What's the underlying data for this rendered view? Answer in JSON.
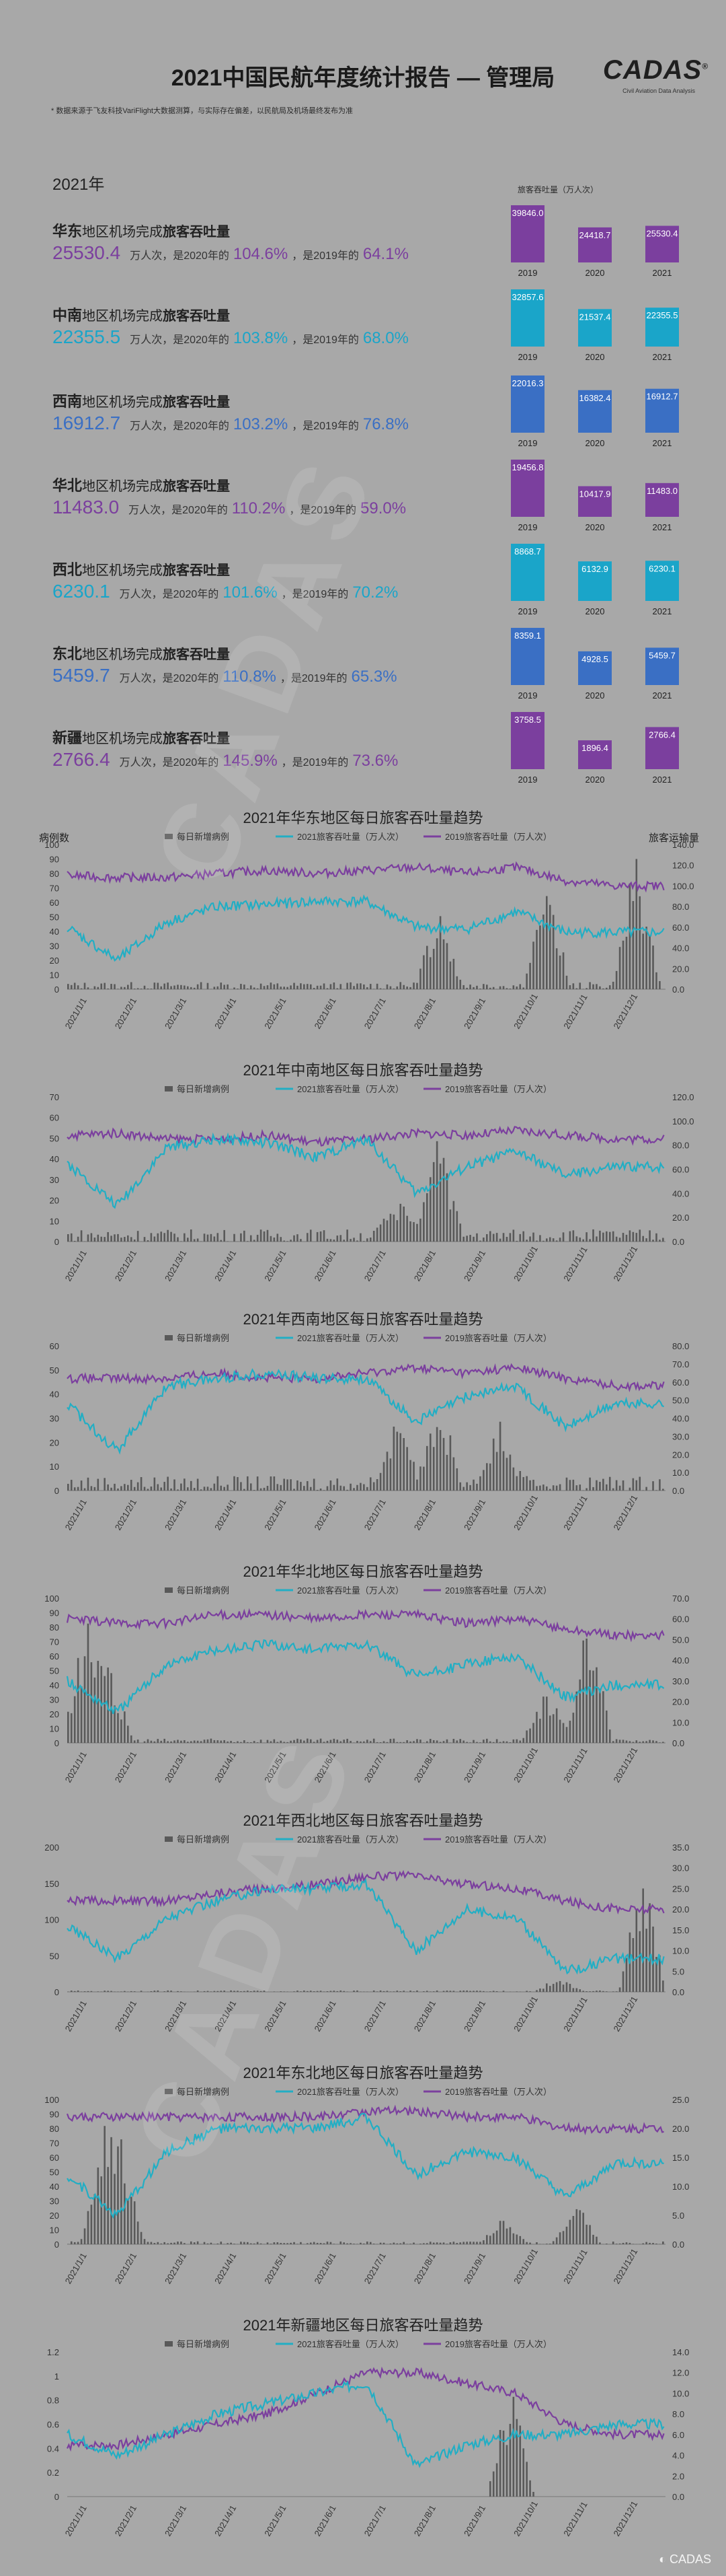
{
  "header": {
    "title": "2021中国民航年度统计报告 — 管理局",
    "logo": "CADAS",
    "logo_mark": "®",
    "logo_subtitle": "Civil Aviation Data Analysis",
    "note": "* 数据来源于飞友科技VariFlight大数据测算，与实际存在偏差，以民航局及机场最终发布为准"
  },
  "year_label": "2021年",
  "units_label": "旅客吞吐量（万人次）",
  "watermark": "CADAS",
  "colors": {
    "background": "#a8a8a8",
    "east": "#7b3f9e",
    "south": "#1aa5c9",
    "southwest": "#3a6fc4",
    "north": "#7b3f9e",
    "northwest": "#1aa5c9",
    "northeast": "#3a6fc4",
    "xinjiang": "#7b3f9e",
    "cases": "#595959",
    "y2021": "#22aec4",
    "y2019": "#7b3f9e"
  },
  "text": {
    "region_suffix_a": "地区机场完成",
    "region_suffix_b": "旅客吞吐量",
    "unit": "万人次",
    "vs2020": "，是2020年的",
    "vs2019": "，是2019年的"
  },
  "regions": [
    {
      "name": "华东",
      "total": "25530.4",
      "vs2020": "104.6%",
      "vs2019": "64.1%",
      "color": "#7b3f9e",
      "mini": {
        "years": [
          "2019",
          "2020",
          "2021"
        ],
        "values": [
          39846.0,
          24418.7,
          25530.4
        ],
        "labels": [
          "39846.0",
          "24418.7",
          "25530.4"
        ]
      }
    },
    {
      "name": "中南",
      "total": "22355.5",
      "vs2020": "103.8%",
      "vs2019": "68.0%",
      "color": "#1aa5c9",
      "mini": {
        "years": [
          "2019",
          "2020",
          "2021"
        ],
        "values": [
          32857.6,
          21537.4,
          22355.5
        ],
        "labels": [
          "32857.6",
          "21537.4",
          "22355.5"
        ]
      }
    },
    {
      "name": "西南",
      "total": "16912.7",
      "vs2020": "103.2%",
      "vs2019": "76.8%",
      "color": "#3a6fc4",
      "mini": {
        "years": [
          "2019",
          "2020",
          "2021"
        ],
        "values": [
          22016.3,
          16382.4,
          16912.7
        ],
        "labels": [
          "22016.3",
          "16382.4",
          "16912.7"
        ]
      }
    },
    {
      "name": "华北",
      "total": "11483.0",
      "vs2020": "110.2%",
      "vs2019": "59.0%",
      "color": "#7b3f9e",
      "mini": {
        "years": [
          "2019",
          "2020",
          "2021"
        ],
        "values": [
          19456.8,
          10417.9,
          11483.0
        ],
        "labels": [
          "19456.8",
          "10417.9",
          "11483.0"
        ]
      }
    },
    {
      "name": "西北",
      "total": "6230.1",
      "vs2020": "101.6%",
      "vs2019": "70.2%",
      "color": "#1aa5c9",
      "mini": {
        "years": [
          "2019",
          "2020",
          "2021"
        ],
        "values": [
          8868.7,
          6132.9,
          6230.1
        ],
        "labels": [
          "8868.7",
          "6132.9",
          "6230.1"
        ]
      }
    },
    {
      "name": "东北",
      "total": "5459.7",
      "vs2020": "110.8%",
      "vs2019": "65.3%",
      "color": "#3a6fc4",
      "mini": {
        "years": [
          "2019",
          "2020",
          "2021"
        ],
        "values": [
          8359.1,
          4928.5,
          5459.7
        ],
        "labels": [
          "8359.1",
          "4928.5",
          "5459.7"
        ]
      }
    },
    {
      "name": "新疆",
      "total": "2766.4",
      "vs2020": "145.9%",
      "vs2019": "73.6%",
      "color": "#7b3f9e",
      "mini": {
        "years": [
          "2019",
          "2020",
          "2021"
        ],
        "values": [
          3758.5,
          1896.4,
          2766.4
        ],
        "labels": [
          "3758.5",
          "1896.4",
          "2766.4"
        ]
      }
    }
  ],
  "chart_data": [
    {
      "type": "line",
      "title": "2021年华东地区每日旅客吞吐量趋势",
      "region": "华东",
      "ylabel_left": "病例数",
      "ylabel_right": "旅客运输量",
      "left_axis": {
        "min": 0,
        "max": 100,
        "ticks": [
          0,
          10,
          20,
          30,
          40,
          50,
          60,
          70,
          80,
          90,
          100
        ]
      },
      "right_axis": {
        "min": 0,
        "max": 140,
        "ticks": [
          "0.0",
          "20.0",
          "40.0",
          "60.0",
          "80.0",
          "100.0",
          "120.0",
          "140.0"
        ]
      },
      "x_ticks": [
        "2021/1/1",
        "2021/2/1",
        "2021/3/1",
        "2021/4/1",
        "2021/5/1",
        "2021/6/1",
        "2021/7/1",
        "2021/8/1",
        "2021/9/1",
        "2021/10/1",
        "2021/11/1",
        "2021/12/1"
      ],
      "legend": [
        "每日新增病例",
        "2021旅客吞吐量（万人次）",
        "2019旅客吞吐量（万人次）"
      ],
      "series_2021_monthly": [
        60,
        28,
        65,
        80,
        82,
        85,
        85,
        60,
        58,
        75,
        55,
        55
      ],
      "series_2019_monthly": [
        110,
        108,
        108,
        112,
        115,
        112,
        115,
        118,
        112,
        118,
        105,
        100
      ],
      "case_bursts": [
        [
          0.62,
          60
        ],
        [
          0.8,
          70
        ],
        [
          0.95,
          95
        ]
      ],
      "case_base": 5
    },
    {
      "type": "line",
      "title": "2021年中南地区每日旅客吞吐量趋势",
      "region": "中南",
      "left_axis": {
        "min": 0,
        "max": 70,
        "ticks": [
          0,
          10,
          20,
          30,
          40,
          50,
          60,
          70
        ]
      },
      "right_axis": {
        "min": 0,
        "max": 120,
        "ticks": [
          "0.0",
          "20.0",
          "40.0",
          "60.0",
          "80.0",
          "100.0",
          "120.0"
        ]
      },
      "x_ticks": [
        "2021/1/1",
        "2021/2/1",
        "2021/3/1",
        "2021/4/1",
        "2021/5/1",
        "2021/6/1",
        "2021/7/1",
        "2021/8/1",
        "2021/9/1",
        "2021/10/1",
        "2021/11/1",
        "2021/12/1"
      ],
      "legend": [
        "每日新增病例",
        "2021旅客吞吐量（万人次）",
        "2019旅客吞吐量（万人次）"
      ],
      "series_2021_monthly": [
        65,
        30,
        78,
        85,
        82,
        70,
        85,
        40,
        62,
        75,
        55,
        62
      ],
      "series_2019_monthly": [
        88,
        90,
        85,
        85,
        88,
        82,
        85,
        90,
        88,
        92,
        88,
        85
      ],
      "case_bursts": [
        [
          0.55,
          20
        ],
        [
          0.62,
          50
        ]
      ],
      "case_base": 6
    },
    {
      "type": "line",
      "title": "2021年西南地区每日旅客吞吐量趋势",
      "region": "西南",
      "left_axis": {
        "min": 0,
        "max": 60,
        "ticks": [
          0,
          10,
          20,
          30,
          40,
          50,
          60
        ]
      },
      "right_axis": {
        "min": 0,
        "max": 80,
        "ticks": [
          "0.0",
          "10.0",
          "20.0",
          "30.0",
          "40.0",
          "50.0",
          "60.0",
          "70.0",
          "80.0"
        ]
      },
      "x_ticks": [
        "2021/1/1",
        "2021/2/1",
        "2021/3/1",
        "2021/4/1",
        "2021/5/1",
        "2021/6/1",
        "2021/7/1",
        "2021/8/1",
        "2021/9/1",
        "2021/10/1",
        "2021/11/1",
        "2021/12/1"
      ],
      "legend": [
        "每日新增病例",
        "2021旅客吞吐量（万人次）",
        "2019旅客吞吐量（万人次）"
      ],
      "series_2021_monthly": [
        48,
        22,
        58,
        62,
        65,
        62,
        62,
        38,
        52,
        58,
        35,
        48
      ],
      "series_2019_monthly": [
        62,
        62,
        62,
        65,
        62,
        62,
        65,
        68,
        65,
        68,
        62,
        58
      ],
      "case_bursts": [
        [
          0.55,
          30
        ],
        [
          0.62,
          35
        ],
        [
          0.72,
          25
        ]
      ],
      "case_base": 6
    },
    {
      "type": "line",
      "title": "2021年华北地区每日旅客吞吐量趋势",
      "region": "华北",
      "left_axis": {
        "min": 0,
        "max": 100,
        "ticks": [
          0,
          10,
          20,
          30,
          40,
          50,
          60,
          70,
          80,
          90,
          100
        ]
      },
      "right_axis": {
        "min": 0,
        "max": 70,
        "ticks": [
          "0.0",
          "10.0",
          "20.0",
          "30.0",
          "40.0",
          "50.0",
          "60.0",
          "70.0"
        ]
      },
      "x_ticks": [
        "2021/1/1",
        "2021/2/1",
        "2021/3/1",
        "2021/4/1",
        "2021/5/1",
        "2021/6/1",
        "2021/7/1",
        "2021/8/1",
        "2021/9/1",
        "2021/10/1",
        "2021/11/1",
        "2021/12/1"
      ],
      "legend": [
        "每日新增病例",
        "2021旅客吞吐量（万人次）",
        "2019旅客吞吐量（万人次）"
      ],
      "series_2021_monthly": [
        30,
        15,
        38,
        45,
        48,
        45,
        48,
        32,
        38,
        42,
        22,
        28
      ],
      "series_2019_monthly": [
        60,
        58,
        58,
        62,
        62,
        60,
        62,
        62,
        58,
        60,
        55,
        52
      ],
      "case_bursts": [
        [
          0.03,
          90
        ],
        [
          0.07,
          50
        ],
        [
          0.8,
          40
        ],
        [
          0.87,
          90
        ]
      ],
      "case_base": 3
    },
    {
      "type": "line",
      "title": "2021年西北地区每日旅客吞吐量趋势",
      "region": "西北",
      "left_axis": {
        "min": 0,
        "max": 200,
        "ticks": [
          0,
          50,
          100,
          150,
          200
        ]
      },
      "right_axis": {
        "min": 0,
        "max": 35,
        "ticks": [
          "0.0",
          "5.0",
          "10.0",
          "15.0",
          "20.0",
          "25.0",
          "30.0",
          "35.0"
        ]
      },
      "x_ticks": [
        "2021/1/1",
        "2021/2/1",
        "2021/3/1",
        "2021/4/1",
        "2021/5/1",
        "2021/6/1",
        "2021/7/1",
        "2021/8/1",
        "2021/9/1",
        "2021/10/1",
        "2021/11/1",
        "2021/12/1"
      ],
      "legend": [
        "每日新增病例",
        "2021旅客吞吐量（万人次）",
        "2019旅客吞吐量（万人次）"
      ],
      "series_2021_monthly": [
        16,
        8,
        18,
        22,
        25,
        25,
        26,
        10,
        20,
        18,
        5,
        8
      ],
      "series_2019_monthly": [
        22,
        22,
        22,
        24,
        25,
        26,
        28,
        28,
        26,
        25,
        22,
        20
      ],
      "case_bursts": [
        [
          0.82,
          20
        ],
        [
          0.96,
          180
        ]
      ],
      "case_base": 2
    },
    {
      "type": "line",
      "title": "2021年东北地区每日旅客吞吐量趋势",
      "region": "东北",
      "left_axis": {
        "min": 0,
        "max": 100,
        "ticks": [
          0,
          10,
          20,
          30,
          40,
          50,
          60,
          70,
          80,
          90,
          100
        ]
      },
      "right_axis": {
        "min": 0,
        "max": 25,
        "ticks": [
          "0.0",
          "5.0",
          "10.0",
          "15.0",
          "20.0",
          "25.0"
        ]
      },
      "x_ticks": [
        "2021/1/1",
        "2021/2/1",
        "2021/3/1",
        "2021/4/1",
        "2021/5/1",
        "2021/6/1",
        "2021/7/1",
        "2021/8/1",
        "2021/9/1",
        "2021/10/1",
        "2021/11/1",
        "2021/12/1"
      ],
      "legend": [
        "每日新增病例",
        "2021旅客吞吐量（万人次）",
        "2019旅客吞吐量（万人次）"
      ],
      "series_2021_monthly": [
        12,
        5,
        16,
        20,
        20,
        20,
        22,
        12,
        16,
        15,
        8,
        14
      ],
      "series_2019_monthly": [
        22,
        22,
        22,
        22,
        22,
        22,
        23,
        23,
        22,
        22,
        20,
        20
      ],
      "case_bursts": [
        [
          0.06,
          80
        ],
        [
          0.09,
          60
        ],
        [
          0.73,
          20
        ],
        [
          0.85,
          30
        ]
      ],
      "case_base": 2
    },
    {
      "type": "line",
      "title": "2021年新疆地区每日旅客吞吐量趋势",
      "region": "新疆",
      "left_axis": {
        "min": 0,
        "max": 1.2,
        "ticks": [
          "0",
          "0.2",
          "0.4",
          "0.6",
          "0.8",
          "1",
          "1.2"
        ]
      },
      "right_axis": {
        "min": 0,
        "max": 14,
        "ticks": [
          "0.0",
          "2.0",
          "4.0",
          "6.0",
          "8.0",
          "10.0",
          "12.0",
          "14.0"
        ]
      },
      "x_ticks": [
        "2021/1/1",
        "2021/2/1",
        "2021/3/1",
        "2021/4/1",
        "2021/5/1",
        "2021/6/1",
        "2021/7/1",
        "2021/8/1",
        "2021/9/1",
        "2021/10/1",
        "2021/11/1",
        "2021/12/1"
      ],
      "legend": [
        "每日新增病例",
        "2021旅客吞吐量（万人次）",
        "2019旅客吞吐量（万人次）"
      ],
      "series_2021_monthly": [
        6,
        4,
        6,
        8,
        9,
        10,
        11,
        3,
        5,
        6,
        6,
        7
      ],
      "series_2019_monthly": [
        5,
        5,
        6,
        7,
        8,
        10,
        12,
        12,
        11,
        10,
        7,
        6
      ],
      "case_bursts": [
        [
          0.74,
          1.0
        ]
      ],
      "case_base": 0
    }
  ],
  "footer": "CADAS"
}
